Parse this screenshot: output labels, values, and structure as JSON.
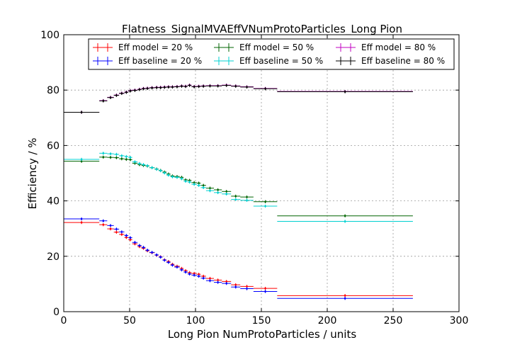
{
  "chart_data": {
    "type": "scatter",
    "title": "Flatness_SignalMVAEffVNumProtoParticles_Long Pion",
    "xlabel": "Long Pion NumProtoParticles / units",
    "ylabel": "Efficiency / %",
    "xlim": [
      0,
      300
    ],
    "ylim": [
      0,
      100
    ],
    "xticks": [
      "0",
      "50",
      "100",
      "150",
      "200",
      "250",
      "300"
    ],
    "yticks": [
      "0",
      "20",
      "40",
      "60",
      "80",
      "100"
    ],
    "grid": true,
    "legend_position": "top",
    "bins": [
      [
        0,
        27
      ],
      [
        27,
        33
      ],
      [
        33,
        38
      ],
      [
        38,
        42
      ],
      [
        42,
        46
      ],
      [
        46,
        49
      ],
      [
        49,
        52
      ],
      [
        52,
        56
      ],
      [
        56,
        59
      ],
      [
        59,
        62
      ],
      [
        62,
        65
      ],
      [
        65,
        69
      ],
      [
        69,
        72
      ],
      [
        72,
        75
      ],
      [
        75,
        78
      ],
      [
        78,
        81
      ],
      [
        81,
        84
      ],
      [
        84,
        88
      ],
      [
        88,
        91
      ],
      [
        91,
        94
      ],
      [
        94,
        97
      ],
      [
        97,
        101
      ],
      [
        101,
        104
      ],
      [
        104,
        108
      ],
      [
        108,
        114
      ],
      [
        114,
        120
      ],
      [
        120,
        127
      ],
      [
        127,
        134
      ],
      [
        134,
        144
      ],
      [
        144,
        162
      ],
      [
        162,
        265
      ]
    ],
    "series": [
      {
        "name": "Eff model = 20 %",
        "color": "#ff0000",
        "values": [
          32.2,
          31.4,
          29.9,
          28.7,
          27.9,
          26.8,
          26.0,
          24.5,
          23.5,
          22.9,
          22.0,
          21.3,
          20.4,
          19.8,
          18.7,
          18.1,
          17.1,
          16.4,
          15.6,
          14.8,
          14.1,
          13.8,
          13.5,
          12.8,
          12.0,
          11.4,
          10.9,
          9.7,
          9.1,
          8.4,
          5.8
        ]
      },
      {
        "name": "Eff baseline = 20 %",
        "color": "#0000ff",
        "values": [
          33.5,
          32.8,
          31.1,
          29.8,
          28.8,
          27.5,
          26.7,
          25.0,
          23.9,
          23.2,
          22.2,
          21.4,
          20.5,
          19.7,
          18.6,
          17.8,
          16.8,
          16.1,
          15.1,
          14.3,
          13.6,
          13.2,
          12.8,
          12.1,
          11.2,
          10.6,
          10.2,
          8.9,
          8.3,
          7.3,
          4.8
        ]
      },
      {
        "name": "Eff model = 50 %",
        "color": "#006400",
        "values": [
          54.3,
          55.8,
          55.7,
          55.6,
          55.2,
          55.0,
          54.9,
          53.6,
          53.1,
          52.8,
          52.6,
          52.0,
          51.5,
          51.0,
          50.4,
          49.7,
          49.0,
          48.8,
          48.5,
          47.6,
          47.4,
          46.6,
          46.4,
          45.6,
          44.6,
          44.0,
          43.4,
          41.7,
          41.4,
          39.7,
          34.6
        ]
      },
      {
        "name": "Eff baseline = 50 %",
        "color": "#00d0d0",
        "values": [
          55.0,
          57.2,
          57.0,
          56.8,
          56.3,
          56.0,
          55.7,
          54.1,
          53.5,
          53.1,
          52.7,
          52.0,
          51.4,
          50.9,
          50.1,
          49.3,
          48.7,
          48.5,
          48.0,
          47.1,
          46.8,
          46.0,
          45.6,
          44.8,
          43.7,
          43.0,
          42.5,
          40.5,
          40.2,
          38.1,
          32.6
        ]
      },
      {
        "name": "Eff model = 80 %",
        "color": "#c000c0",
        "values": [
          72.0,
          76.2,
          77.4,
          78.2,
          78.9,
          79.3,
          79.8,
          80.0,
          80.3,
          80.6,
          80.7,
          80.9,
          81.0,
          81.0,
          81.1,
          81.2,
          81.2,
          81.3,
          81.5,
          81.4,
          81.8,
          81.3,
          81.4,
          81.5,
          81.6,
          81.6,
          81.8,
          81.5,
          81.2,
          80.6,
          79.5
        ]
      },
      {
        "name": "Eff baseline = 80 %",
        "color": "#000000",
        "values": [
          72.0,
          76.1,
          77.3,
          78.1,
          78.8,
          79.2,
          79.7,
          79.9,
          80.2,
          80.5,
          80.6,
          80.8,
          80.9,
          80.9,
          81.0,
          81.1,
          81.1,
          81.2,
          81.4,
          81.3,
          81.7,
          81.2,
          81.3,
          81.4,
          81.5,
          81.5,
          81.7,
          81.4,
          81.1,
          80.5,
          79.4
        ]
      }
    ]
  }
}
